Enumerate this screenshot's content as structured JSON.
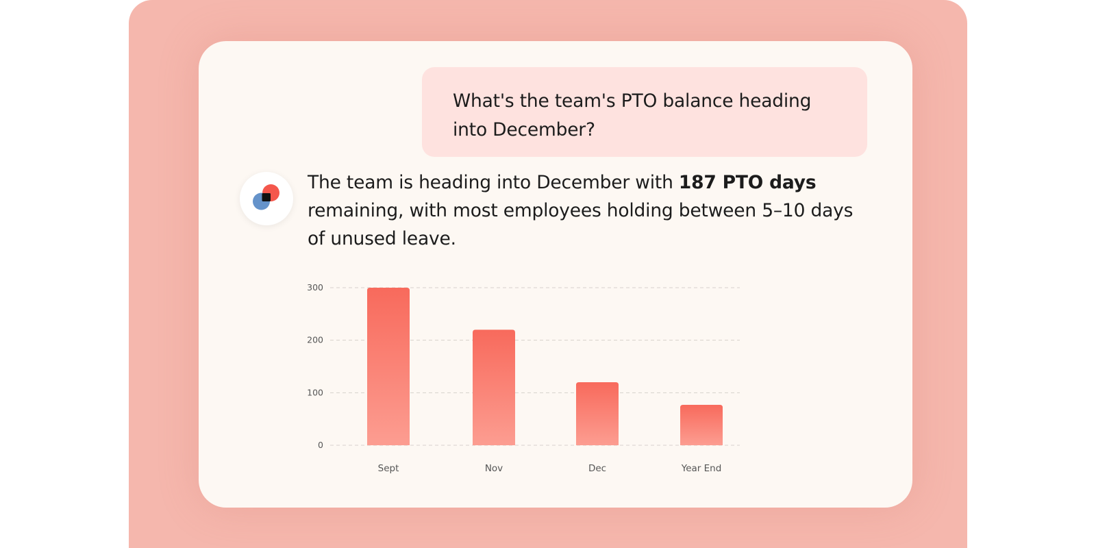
{
  "conversation": {
    "user_message": "What's the team's PTO balance heading into December?",
    "assistant_message": {
      "prefix": "The team is heading into December with ",
      "highlight": "187 PTO days",
      "suffix": " remaining, with most employees holding between 5–10 days of unused leave."
    }
  },
  "colors": {
    "backdrop": "#f5b7ad",
    "card": "#fdf8f3",
    "user_bubble": "#fee2df",
    "bar_top": "#f86a5c",
    "bar_bottom": "#fc9d91",
    "avatar_red": "#f4574c",
    "avatar_blue": "#6593ca"
  },
  "icons": {
    "avatar": "assistant-logo-icon"
  },
  "chart_data": {
    "type": "bar",
    "categories": [
      "Sept",
      "Nov",
      "Dec",
      "Year End"
    ],
    "values": [
      300,
      220,
      120,
      77
    ],
    "title": "",
    "xlabel": "",
    "ylabel": "",
    "ylim": [
      0,
      300
    ],
    "yticks": [
      0,
      100,
      200,
      300
    ],
    "grid": "dashed horizontal"
  }
}
